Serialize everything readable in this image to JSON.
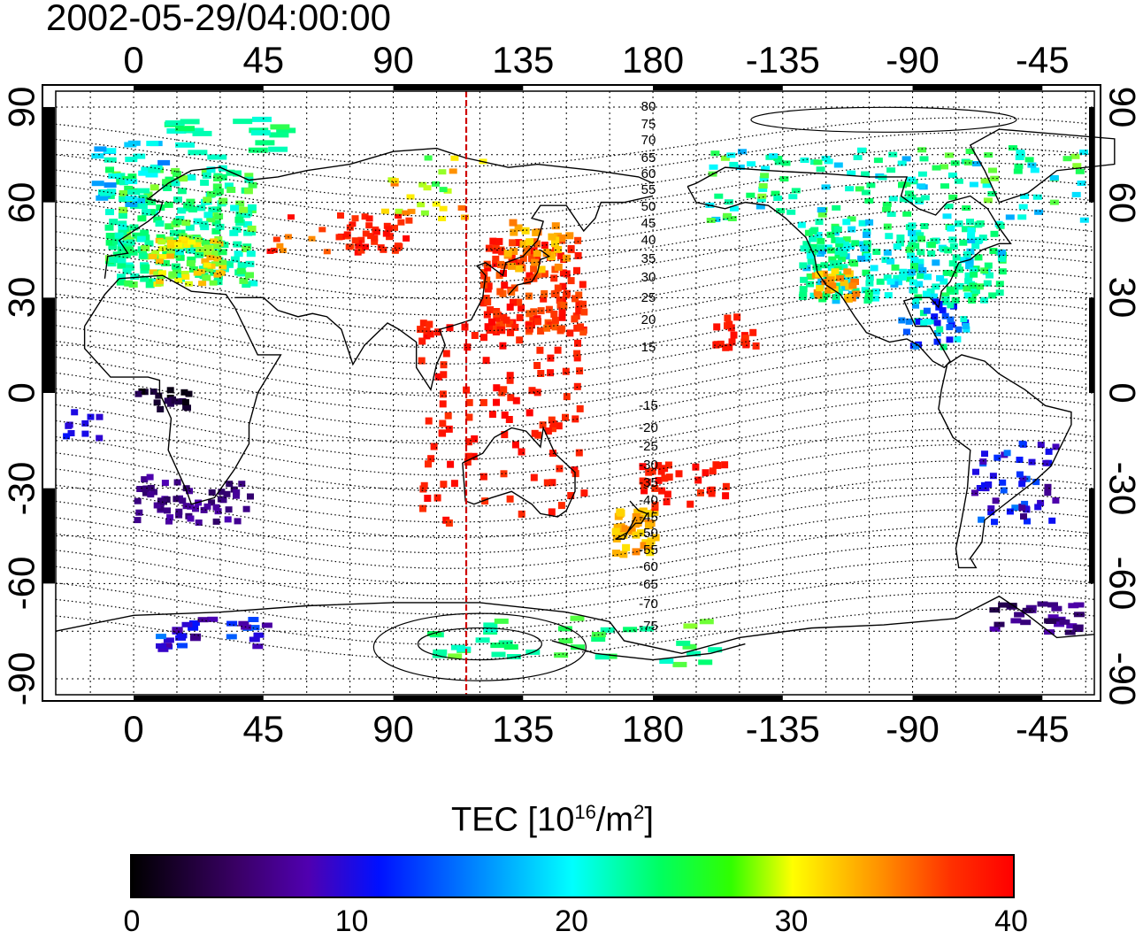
{
  "timestamp": "2002-05-29/04:00:00",
  "top_lon_ticks": [
    "0",
    "45",
    "90",
    "135",
    "180",
    "-135",
    "-90",
    "-45"
  ],
  "bottom_lon_ticks": [
    "0",
    "45",
    "90",
    "135",
    "180",
    "-135",
    "-90",
    "-45"
  ],
  "lat_ticks": [
    "90",
    "60",
    "30",
    "0",
    "-30",
    "-60",
    "-90"
  ],
  "contour_labels": [
    "80",
    "75",
    "70",
    "65",
    "60",
    "55",
    "50",
    "45",
    "40",
    "35",
    "30",
    "25",
    "20",
    "15",
    "-15",
    "-20",
    "-25",
    "-30",
    "-35",
    "-40",
    "-45",
    "-50",
    "-55",
    "-60",
    "-65",
    "-70",
    "-75"
  ],
  "colorbar": {
    "title_prefix": "TEC  [10",
    "title_sup1": "16",
    "title_mid": "/m",
    "title_sup2": "2",
    "title_suffix": "]",
    "ticks": [
      "0",
      "10",
      "20",
      "30",
      "40"
    ],
    "range": [
      0,
      40
    ],
    "colors": [
      "#000000",
      "#5000b0",
      "#0010ff",
      "#00ffff",
      "#00ff60",
      "#ffff00",
      "#ff9000",
      "#ff0000"
    ]
  },
  "colors": {
    "meridian_marker": "#d00000",
    "frame": "#000000",
    "background": "#ffffff"
  },
  "meridian_lon": 120,
  "map_extent": {
    "lon_min": -27,
    "lon_max": 333,
    "lat_min": -95,
    "lat_max": 95
  }
}
